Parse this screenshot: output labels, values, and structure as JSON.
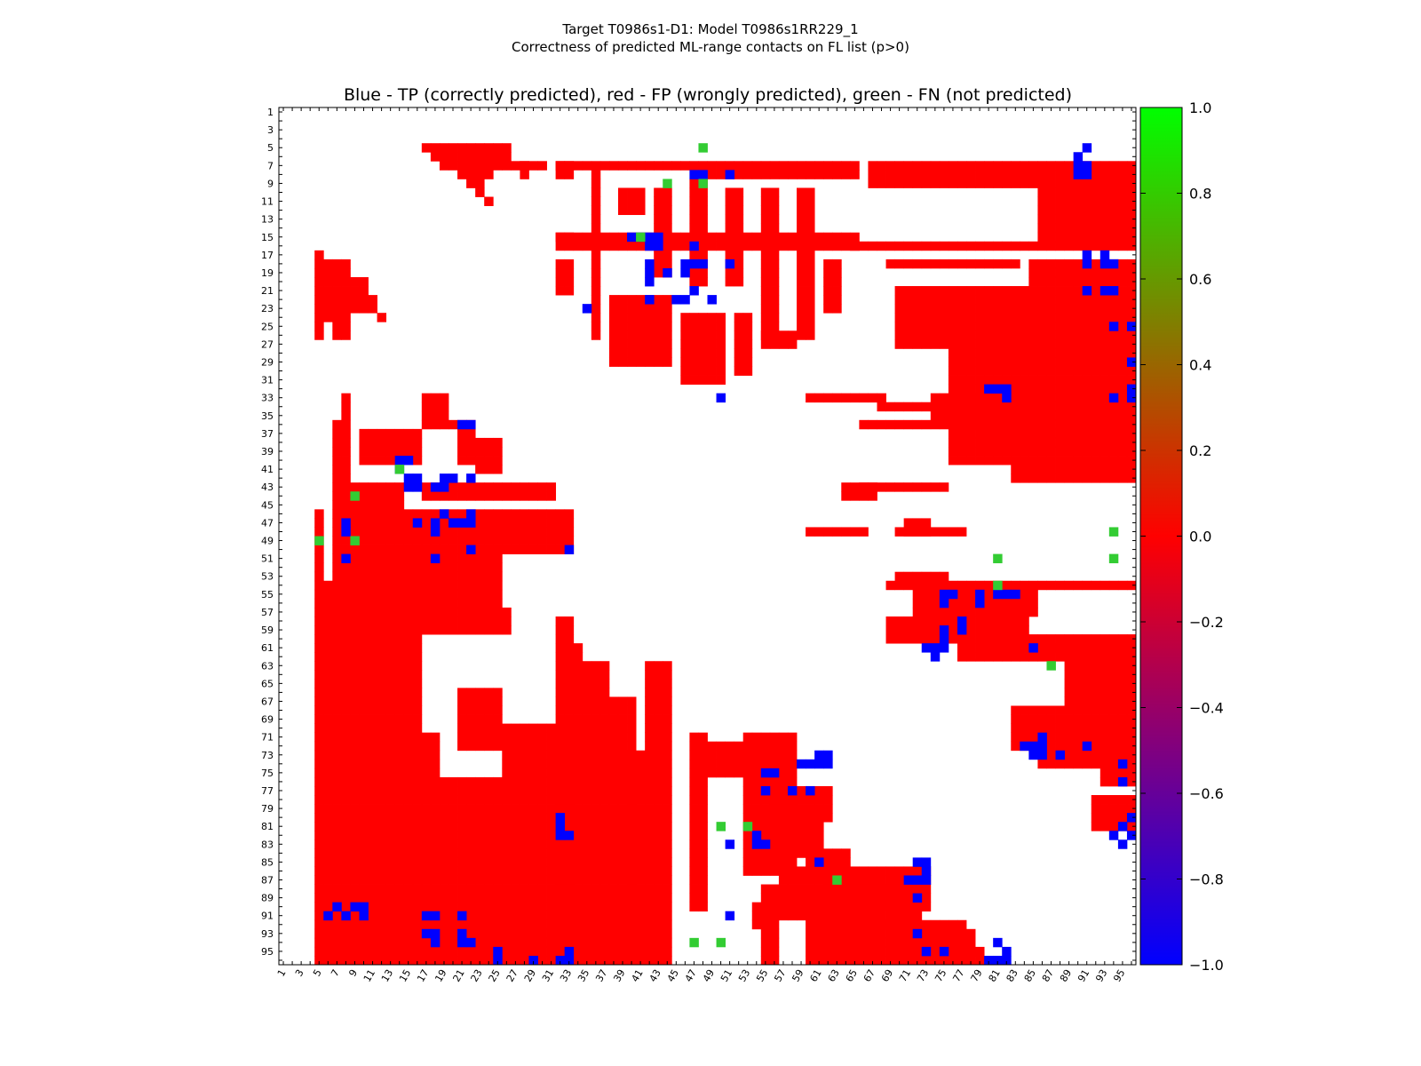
{
  "figure": {
    "title_line1": "Target T0986s1-D1: Model T0986s1RR229_1",
    "title_line2": "Correctness of predicted ML-range contacts on FL list (p>0)"
  },
  "chart_data": {
    "type": "heatmap",
    "title": "Blue - TP (correctly predicted), red - FP (wrongly predicted), green - FN (not predicted)",
    "xlabel": "",
    "ylabel": "",
    "n_residues": 96,
    "x_ticks": [
      1,
      3,
      5,
      7,
      9,
      11,
      13,
      15,
      17,
      19,
      21,
      23,
      25,
      27,
      29,
      31,
      33,
      35,
      37,
      39,
      41,
      43,
      45,
      47,
      49,
      51,
      53,
      55,
      57,
      59,
      61,
      63,
      65,
      67,
      69,
      71,
      73,
      75,
      77,
      79,
      81,
      83,
      85,
      87,
      89,
      91,
      93,
      95
    ],
    "y_ticks": [
      1,
      3,
      5,
      7,
      9,
      11,
      13,
      15,
      17,
      19,
      21,
      23,
      25,
      27,
      29,
      31,
      33,
      35,
      37,
      39,
      41,
      43,
      45,
      47,
      49,
      51,
      53,
      55,
      57,
      59,
      61,
      63,
      65,
      67,
      69,
      71,
      73,
      75,
      77,
      79,
      81,
      83,
      85,
      87,
      89,
      91,
      93,
      95
    ],
    "colorbar": {
      "min": -1.0,
      "max": 1.0,
      "ticks": [
        "1.0",
        "0.8",
        "0.6",
        "0.4",
        "0.2",
        "0.0",
        "−0.2",
        "−0.4",
        "−0.6",
        "−0.8",
        "−1.0"
      ],
      "stops": [
        "#00ff00",
        "#ff0000",
        "#0000ff"
      ]
    },
    "colors": {
      "TP": "#0000ff",
      "FP": "#ff0000",
      "FN": "#33cc33"
    },
    "categories": {
      "TP": "correctly predicted",
      "FP": "wrongly predicted",
      "FN": "not predicted"
    },
    "red_blocks": [
      [
        17,
        26,
        5,
        5
      ],
      [
        18,
        26,
        6,
        6
      ],
      [
        19,
        30,
        7,
        7
      ],
      [
        21,
        24,
        8,
        8
      ],
      [
        22,
        23,
        9,
        9
      ],
      [
        23,
        23,
        10,
        10
      ],
      [
        24,
        24,
        11,
        11
      ],
      [
        28,
        28,
        7,
        8
      ],
      [
        32,
        33,
        7,
        8
      ],
      [
        32,
        65,
        7,
        7
      ],
      [
        48,
        65,
        8,
        8
      ],
      [
        67,
        96,
        7,
        9
      ],
      [
        86,
        96,
        10,
        15
      ],
      [
        32,
        33,
        15,
        15
      ],
      [
        32,
        65,
        15,
        16
      ],
      [
        65,
        96,
        16,
        16
      ],
      [
        32,
        33,
        18,
        21
      ],
      [
        36,
        36,
        8,
        26
      ],
      [
        39,
        41,
        10,
        12
      ],
      [
        43,
        44,
        10,
        19
      ],
      [
        47,
        48,
        9,
        20
      ],
      [
        51,
        52,
        10,
        20
      ],
      [
        55,
        56,
        10,
        26
      ],
      [
        59,
        60,
        10,
        26
      ],
      [
        62,
        63,
        18,
        23
      ],
      [
        38,
        44,
        22,
        29
      ],
      [
        46,
        50,
        24,
        31
      ],
      [
        52,
        53,
        24,
        30
      ],
      [
        55,
        58,
        26,
        27
      ],
      [
        69,
        83,
        18,
        18
      ],
      [
        85,
        96,
        18,
        20
      ],
      [
        70,
        96,
        21,
        27
      ],
      [
        76,
        96,
        28,
        40
      ],
      [
        60,
        68,
        33,
        33
      ],
      [
        68,
        75,
        34,
        34
      ],
      [
        66,
        84,
        36,
        36
      ],
      [
        74,
        84,
        33,
        35
      ],
      [
        83,
        96,
        41,
        42
      ],
      [
        64,
        67,
        43,
        44
      ],
      [
        66,
        75,
        43,
        43
      ],
      [
        71,
        73,
        47,
        48
      ],
      [
        60,
        66,
        48,
        48
      ],
      [
        70,
        77,
        48,
        48
      ],
      [
        70,
        75,
        53,
        53
      ],
      [
        69,
        96,
        54,
        54
      ],
      [
        72,
        85,
        55,
        57
      ],
      [
        69,
        84,
        58,
        60
      ],
      [
        77,
        96,
        61,
        62
      ],
      [
        82,
        96,
        60,
        61
      ],
      [
        89,
        96,
        63,
        67
      ],
      [
        83,
        96,
        68,
        72
      ],
      [
        86,
        96,
        73,
        74
      ],
      [
        93,
        96,
        75,
        76
      ],
      [
        92,
        96,
        78,
        81
      ],
      [
        5,
        5,
        17,
        26
      ],
      [
        6,
        8,
        18,
        24
      ],
      [
        7,
        8,
        25,
        26
      ],
      [
        9,
        10,
        20,
        23
      ],
      [
        11,
        11,
        22,
        23
      ],
      [
        12,
        12,
        24,
        24
      ],
      [
        8,
        8,
        33,
        96
      ],
      [
        9,
        14,
        43,
        96
      ],
      [
        7,
        7,
        36,
        96
      ],
      [
        5,
        5,
        46,
        96
      ],
      [
        6,
        6,
        54,
        96
      ],
      [
        15,
        16,
        46,
        96
      ],
      [
        10,
        16,
        37,
        40
      ],
      [
        17,
        19,
        33,
        35
      ],
      [
        17,
        22,
        36,
        36
      ],
      [
        21,
        22,
        37,
        40
      ],
      [
        23,
        25,
        38,
        41
      ],
      [
        17,
        31,
        43,
        44
      ],
      [
        17,
        33,
        46,
        50
      ],
      [
        17,
        25,
        51,
        56
      ],
      [
        17,
        26,
        57,
        59
      ],
      [
        32,
        33,
        58,
        96
      ],
      [
        34,
        34,
        61,
        96
      ],
      [
        35,
        37,
        63,
        96
      ],
      [
        38,
        40,
        67,
        96
      ],
      [
        26,
        33,
        70,
        96
      ],
      [
        19,
        25,
        76,
        96
      ],
      [
        17,
        18,
        71,
        96
      ],
      [
        21,
        25,
        66,
        72
      ],
      [
        42,
        43,
        63,
        96
      ],
      [
        44,
        44,
        63,
        96
      ],
      [
        40,
        41,
        73,
        96
      ],
      [
        47,
        48,
        71,
        90
      ],
      [
        49,
        52,
        72,
        75
      ],
      [
        53,
        58,
        71,
        86
      ],
      [
        58,
        61,
        81,
        84
      ],
      [
        60,
        64,
        84,
        85
      ],
      [
        56,
        62,
        77,
        80
      ],
      [
        57,
        63,
        86,
        91
      ],
      [
        62,
        73,
        86,
        90
      ],
      [
        64,
        72,
        88,
        92
      ],
      [
        60,
        77,
        92,
        94
      ],
      [
        60,
        79,
        95,
        96
      ],
      [
        55,
        56,
        88,
        96
      ],
      [
        54,
        54,
        90,
        92
      ],
      [
        74,
        78,
        93,
        95
      ]
    ],
    "blue_cells": [
      [
        91,
        5
      ],
      [
        90,
        6
      ],
      [
        90,
        7
      ],
      [
        91,
        7
      ],
      [
        90,
        8
      ],
      [
        91,
        8
      ],
      [
        47,
        8
      ],
      [
        48,
        8
      ],
      [
        51,
        8
      ],
      [
        40,
        15
      ],
      [
        41,
        15
      ],
      [
        42,
        15
      ],
      [
        43,
        15
      ],
      [
        42,
        16
      ],
      [
        43,
        16
      ],
      [
        47,
        16
      ],
      [
        42,
        18
      ],
      [
        46,
        18
      ],
      [
        47,
        18
      ],
      [
        48,
        18
      ],
      [
        51,
        18
      ],
      [
        42,
        19
      ],
      [
        44,
        19
      ],
      [
        46,
        19
      ],
      [
        42,
        20
      ],
      [
        47,
        21
      ],
      [
        42,
        22
      ],
      [
        45,
        22
      ],
      [
        46,
        22
      ],
      [
        49,
        22
      ],
      [
        35,
        23
      ],
      [
        91,
        17
      ],
      [
        93,
        17
      ],
      [
        91,
        18
      ],
      [
        93,
        18
      ],
      [
        94,
        18
      ],
      [
        91,
        21
      ],
      [
        93,
        21
      ],
      [
        94,
        21
      ],
      [
        94,
        25
      ],
      [
        96,
        25
      ],
      [
        96,
        29
      ],
      [
        80,
        32
      ],
      [
        81,
        32
      ],
      [
        82,
        32
      ],
      [
        82,
        33
      ],
      [
        50,
        33
      ],
      [
        94,
        33
      ],
      [
        96,
        32
      ],
      [
        96,
        33
      ],
      [
        21,
        36
      ],
      [
        22,
        36
      ],
      [
        14,
        40
      ],
      [
        15,
        40
      ],
      [
        14,
        41
      ],
      [
        15,
        42
      ],
      [
        16,
        42
      ],
      [
        15,
        43
      ],
      [
        16,
        43
      ],
      [
        19,
        42
      ],
      [
        20,
        42
      ],
      [
        22,
        42
      ],
      [
        19,
        43
      ],
      [
        18,
        43
      ],
      [
        8,
        47
      ],
      [
        8,
        48
      ],
      [
        16,
        47
      ],
      [
        18,
        47
      ],
      [
        20,
        47
      ],
      [
        21,
        47
      ],
      [
        22,
        47
      ],
      [
        18,
        48
      ],
      [
        22,
        46
      ],
      [
        19,
        46
      ],
      [
        8,
        51
      ],
      [
        18,
        51
      ],
      [
        22,
        50
      ],
      [
        33,
        50
      ],
      [
        8,
        91
      ],
      [
        9,
        90
      ],
      [
        10,
        90
      ],
      [
        10,
        91
      ],
      [
        6,
        91
      ],
      [
        7,
        90
      ],
      [
        17,
        91
      ],
      [
        18,
        91
      ],
      [
        21,
        91
      ],
      [
        17,
        93
      ],
      [
        18,
        93
      ],
      [
        18,
        94
      ],
      [
        21,
        93
      ],
      [
        21,
        94
      ],
      [
        22,
        94
      ],
      [
        25,
        95
      ],
      [
        25,
        96
      ],
      [
        29,
        96
      ],
      [
        32,
        96
      ],
      [
        33,
        96
      ],
      [
        33,
        95
      ],
      [
        32,
        81
      ],
      [
        32,
        82
      ],
      [
        33,
        82
      ],
      [
        32,
        80
      ],
      [
        51,
        91
      ],
      [
        51,
        83
      ],
      [
        54,
        82
      ],
      [
        54,
        83
      ],
      [
        55,
        83
      ],
      [
        55,
        75
      ],
      [
        56,
        75
      ],
      [
        55,
        77
      ],
      [
        58,
        77
      ],
      [
        60,
        77
      ],
      [
        59,
        74
      ],
      [
        60,
        74
      ],
      [
        61,
        74
      ],
      [
        62,
        74
      ],
      [
        61,
        73
      ],
      [
        62,
        73
      ],
      [
        61,
        85
      ],
      [
        72,
        85
      ],
      [
        73,
        85
      ],
      [
        73,
        86
      ],
      [
        71,
        87
      ],
      [
        72,
        87
      ],
      [
        73,
        87
      ],
      [
        72,
        89
      ],
      [
        72,
        93
      ],
      [
        73,
        95
      ],
      [
        75,
        95
      ],
      [
        80,
        96
      ],
      [
        81,
        96
      ],
      [
        82,
        96
      ],
      [
        82,
        95
      ],
      [
        81,
        94
      ],
      [
        76,
        55
      ],
      [
        79,
        55
      ],
      [
        75,
        55
      ],
      [
        75,
        56
      ],
      [
        79,
        56
      ],
      [
        77,
        58
      ],
      [
        77,
        59
      ],
      [
        75,
        59
      ],
      [
        75,
        60
      ],
      [
        73,
        61
      ],
      [
        74,
        61
      ],
      [
        75,
        61
      ],
      [
        74,
        62
      ],
      [
        81,
        55
      ],
      [
        82,
        55
      ],
      [
        83,
        55
      ],
      [
        85,
        61
      ],
      [
        84,
        72
      ],
      [
        85,
        72
      ],
      [
        86,
        72
      ],
      [
        86,
        71
      ],
      [
        86,
        73
      ],
      [
        85,
        73
      ],
      [
        88,
        73
      ],
      [
        91,
        72
      ],
      [
        95,
        74
      ],
      [
        95,
        76
      ],
      [
        96,
        80
      ],
      [
        95,
        81
      ],
      [
        96,
        82
      ],
      [
        95,
        83
      ],
      [
        94,
        82
      ]
    ],
    "green_cells": [
      [
        48,
        5
      ],
      [
        44,
        9
      ],
      [
        48,
        9
      ],
      [
        41,
        15
      ],
      [
        14,
        41
      ],
      [
        9,
        44
      ],
      [
        5,
        49
      ],
      [
        9,
        49
      ],
      [
        94,
        48
      ],
      [
        81,
        51
      ],
      [
        94,
        51
      ],
      [
        81,
        54
      ],
      [
        87,
        63
      ],
      [
        50,
        81
      ],
      [
        53,
        81
      ],
      [
        63,
        87
      ],
      [
        47,
        94
      ],
      [
        50,
        94
      ]
    ]
  }
}
